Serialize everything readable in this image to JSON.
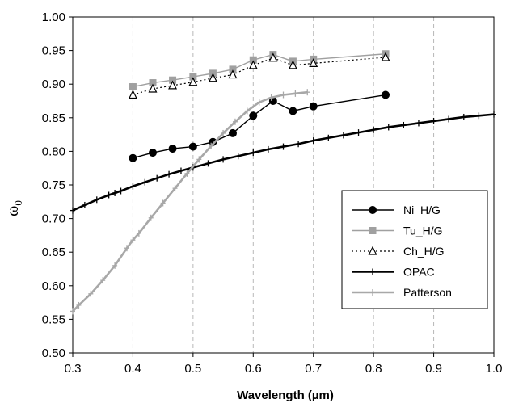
{
  "chart_data": {
    "type": "line",
    "xlabel": "Wavelength (µm)",
    "ylabel": "ω0",
    "xlim": [
      0.3,
      1.0
    ],
    "ylim": [
      0.5,
      1.0
    ],
    "xticks": [
      "0.3",
      "0.4",
      "0.5",
      "0.6",
      "0.7",
      "0.8",
      "0.9",
      "1.0"
    ],
    "yticks": [
      "0.50",
      "0.55",
      "0.60",
      "0.65",
      "0.70",
      "0.75",
      "0.80",
      "0.85",
      "0.90",
      "0.95",
      "1.00"
    ],
    "grid": "vertical dashed",
    "legend_position": "center-right",
    "series": [
      {
        "name": "Ni_H/G",
        "color": "#000000",
        "marker": "circle",
        "line": "solid",
        "x": [
          0.4,
          0.433,
          0.466,
          0.5,
          0.533,
          0.566,
          0.6,
          0.633,
          0.666,
          0.7,
          0.82
        ],
        "y": [
          0.79,
          0.798,
          0.804,
          0.807,
          0.814,
          0.827,
          0.853,
          0.875,
          0.86,
          0.867,
          0.884
        ]
      },
      {
        "name": "Tu_H/G",
        "color": "#a0a0a0",
        "marker": "square",
        "line": "solid",
        "x": [
          0.4,
          0.433,
          0.466,
          0.5,
          0.533,
          0.566,
          0.6,
          0.633,
          0.666,
          0.7,
          0.82
        ],
        "y": [
          0.896,
          0.902,
          0.906,
          0.911,
          0.916,
          0.922,
          0.936,
          0.944,
          0.934,
          0.937,
          0.945
        ]
      },
      {
        "name": "Ch_H/G",
        "color": "#000000",
        "marker": "triangle-open",
        "line": "dotted",
        "x": [
          0.4,
          0.433,
          0.466,
          0.5,
          0.533,
          0.566,
          0.6,
          0.633,
          0.666,
          0.7,
          0.82
        ],
        "y": [
          0.884,
          0.893,
          0.898,
          0.903,
          0.909,
          0.914,
          0.928,
          0.939,
          0.928,
          0.931,
          0.94
        ]
      },
      {
        "name": "OPAC",
        "color": "#000000",
        "marker": "plus",
        "line": "solid-thick",
        "x": [
          0.3,
          0.32,
          0.34,
          0.36,
          0.37,
          0.38,
          0.4,
          0.42,
          0.44,
          0.46,
          0.48,
          0.5,
          0.525,
          0.55,
          0.575,
          0.6,
          0.625,
          0.65,
          0.675,
          0.7,
          0.725,
          0.75,
          0.775,
          0.8,
          0.825,
          0.85,
          0.875,
          0.9,
          0.925,
          0.95,
          0.975,
          1.0
        ],
        "y": [
          0.712,
          0.72,
          0.728,
          0.735,
          0.738,
          0.741,
          0.748,
          0.754,
          0.76,
          0.766,
          0.771,
          0.776,
          0.782,
          0.788,
          0.793,
          0.798,
          0.803,
          0.807,
          0.811,
          0.816,
          0.82,
          0.824,
          0.828,
          0.832,
          0.836,
          0.839,
          0.842,
          0.845,
          0.848,
          0.851,
          0.853,
          0.855
        ]
      },
      {
        "name": "Patterson",
        "color": "#a8a8a8",
        "marker": "plus",
        "line": "solid-thick",
        "x": [
          0.3,
          0.31,
          0.33,
          0.35,
          0.37,
          0.39,
          0.4,
          0.41,
          0.43,
          0.45,
          0.47,
          0.49,
          0.51,
          0.53,
          0.55,
          0.57,
          0.59,
          0.61,
          0.63,
          0.65,
          0.67,
          0.69
        ],
        "y": [
          0.562,
          0.571,
          0.588,
          0.608,
          0.63,
          0.656,
          0.668,
          0.678,
          0.701,
          0.723,
          0.745,
          0.767,
          0.788,
          0.808,
          0.827,
          0.844,
          0.86,
          0.873,
          0.88,
          0.884,
          0.886,
          0.888
        ]
      }
    ]
  }
}
